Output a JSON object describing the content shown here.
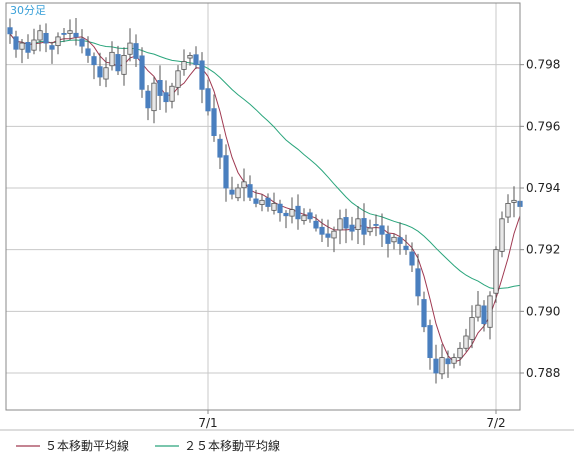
{
  "chart_data": {
    "type": "candlestick",
    "period_label": "30分足",
    "title": "",
    "xlabel": "",
    "ylabel": "",
    "ylim": [
      0.7868,
      0.8
    ],
    "y_ticks": [
      "0.798",
      "0.796",
      "0.794",
      "0.792",
      "0.790",
      "0.788"
    ],
    "y_tick_values": [
      0.798,
      0.796,
      0.794,
      0.792,
      0.79,
      0.788
    ],
    "x_labels": [
      {
        "label": "7/1",
        "index": 33
      },
      {
        "label": "7/2",
        "index": 81
      }
    ],
    "grid": true,
    "legend_position": "bottom-left",
    "colors": {
      "up": "#e8e8e8",
      "down": "#4a7fbf",
      "wick": "#555555",
      "ma5": "#a03a52",
      "ma25": "#2aa57c",
      "grid": "#c8c8c8",
      "axis": "#888888",
      "period": "#3aa0d8"
    },
    "series": [
      {
        "name": "５本移動平均線",
        "color": "#a03a52",
        "kind": "ma",
        "window": 5
      },
      {
        "name": "２５本移動平均線",
        "color": "#2aa57c",
        "kind": "ma",
        "window": 25
      }
    ],
    "closes": [
      0.799,
      0.7985,
      0.7987,
      0.7984,
      0.7988,
      0.7991,
      0.7987,
      0.7985,
      0.7989,
      0.799,
      0.7991,
      0.7989,
      0.7986,
      0.7983,
      0.798,
      0.7976,
      0.7979,
      0.7984,
      0.7978,
      0.7983,
      0.7987,
      0.7982,
      0.7972,
      0.7966,
      0.7974,
      0.797,
      0.7968,
      0.7973,
      0.7978,
      0.7981,
      0.7983,
      0.798,
      0.7972,
      0.7965,
      0.7957,
      0.795,
      0.794,
      0.7938,
      0.794,
      0.7942,
      0.7937,
      0.7935,
      0.7936,
      0.7934,
      0.7935,
      0.7932,
      0.7931,
      0.7933,
      0.793,
      0.7931,
      0.793,
      0.7927,
      0.7925,
      0.7924,
      0.7926,
      0.793,
      0.7927,
      0.7926,
      0.793,
      0.7925,
      0.7927,
      0.7928,
      0.7925,
      0.7922,
      0.7924,
      0.7922,
      0.792,
      0.7915,
      0.7905,
      0.7895,
      0.7885,
      0.788,
      0.7885,
      0.7883,
      0.7885,
      0.7888,
      0.7892,
      0.7898,
      0.7902,
      0.7896,
      0.7905,
      0.792,
      0.793,
      0.7935,
      0.7936,
      0.7934
    ]
  },
  "legend": {
    "ma5_label": "５本移動平均線",
    "ma25_label": "２５本移動平均線"
  }
}
